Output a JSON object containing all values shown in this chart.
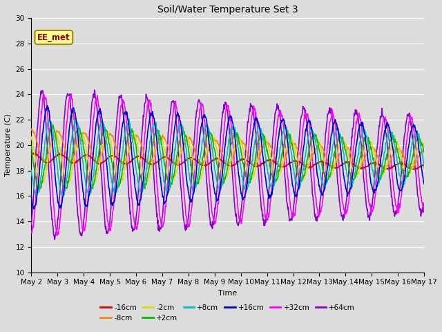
{
  "title": "Soil/Water Temperature Set 3",
  "xlabel": "Time",
  "ylabel": "Temperature (C)",
  "ylim": [
    10,
    30
  ],
  "background_color": "#dcdcdc",
  "plot_bg_color": "#dcdcdc",
  "annotation_text": "EE_met",
  "annotation_bg": "#ffff99",
  "annotation_border": "#aa8800",
  "series_order": [
    "-16cm",
    "-8cm",
    "-2cm",
    "+2cm",
    "+8cm",
    "+16cm",
    "+32cm",
    "+64cm"
  ],
  "series": {
    "-16cm": {
      "color": "#dd0000",
      "lw": 1.2,
      "zorder": 6
    },
    "-8cm": {
      "color": "#ff8800",
      "lw": 1.2,
      "zorder": 6
    },
    "-2cm": {
      "color": "#dddd00",
      "lw": 1.2,
      "zorder": 6
    },
    "+2cm": {
      "color": "#00bb00",
      "lw": 1.2,
      "zorder": 6
    },
    "+8cm": {
      "color": "#00bbbb",
      "lw": 1.2,
      "zorder": 6
    },
    "+16cm": {
      "color": "#0000cc",
      "lw": 1.2,
      "zorder": 6
    },
    "+32cm": {
      "color": "#ff00ff",
      "lw": 1.2,
      "zorder": 4
    },
    "+64cm": {
      "color": "#8800cc",
      "lw": 1.2,
      "zorder": 3
    }
  },
  "x_tick_labels": [
    "May 2",
    "May 3",
    "May 4",
    "May 5",
    "May 6",
    "May 7",
    "May 8",
    "May 9",
    "May 10",
    "May 11",
    "May 12",
    "May 13",
    "May 14",
    "May 15",
    "May 16",
    "May 17"
  ],
  "n_points": 960,
  "days": 15
}
